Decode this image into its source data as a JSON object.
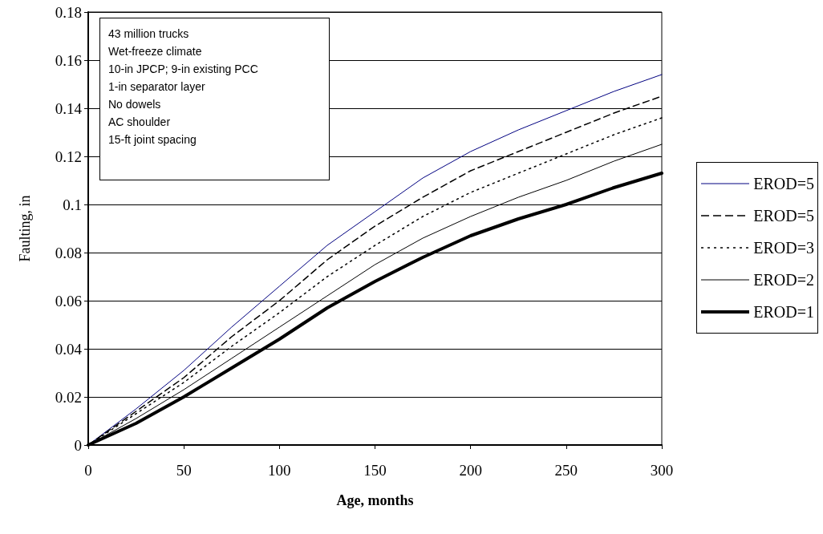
{
  "chart_data": {
    "type": "line",
    "xlabel": "Age, months",
    "ylabel": "Faulting, in",
    "x": [
      0,
      25,
      50,
      75,
      100,
      125,
      150,
      175,
      200,
      225,
      250,
      275,
      300
    ],
    "xlim": [
      0,
      300
    ],
    "xticks": [
      0,
      50,
      100,
      150,
      200,
      250,
      300
    ],
    "ylim": [
      0,
      0.18
    ],
    "yticks": [
      0,
      0.02,
      0.04,
      0.06,
      0.08,
      0.1,
      0.12,
      0.14,
      0.16,
      0.18
    ],
    "grid": "y",
    "legend": "right",
    "marker": "none",
    "series": [
      {
        "name": "EROD=5",
        "color": "#000080",
        "line_style": "solid",
        "values": [
          0,
          0.015,
          0.031,
          0.049,
          0.066,
          0.083,
          0.097,
          0.111,
          0.122,
          0.131,
          0.139,
          0.147,
          0.154
        ]
      },
      {
        "name": "EROD=5",
        "color": "#000000",
        "line_style": "dashed",
        "values": [
          0,
          0.014,
          0.028,
          0.045,
          0.06,
          0.077,
          0.091,
          0.103,
          0.114,
          0.122,
          0.13,
          0.138,
          0.145
        ]
      },
      {
        "name": "EROD=3",
        "color": "#000000",
        "line_style": "dotted",
        "values": [
          0,
          0.013,
          0.026,
          0.041,
          0.055,
          0.07,
          0.083,
          0.095,
          0.105,
          0.113,
          0.121,
          0.129,
          0.136
        ]
      },
      {
        "name": "EROD=2",
        "color": "#000000",
        "line_style": "solid",
        "values": [
          0,
          0.011,
          0.023,
          0.036,
          0.049,
          0.062,
          0.075,
          0.086,
          0.095,
          0.103,
          0.11,
          0.118,
          0.125
        ]
      },
      {
        "name": "EROD=1",
        "color": "#000000",
        "line_style": "solid",
        "values": [
          0,
          0.009,
          0.02,
          0.032,
          0.044,
          0.057,
          0.068,
          0.078,
          0.087,
          0.094,
          0.1,
          0.107,
          0.113
        ]
      }
    ],
    "annotations": [
      "43 million trucks",
      "Wet-freeze climate",
      "10-in JPCP; 9-in existing PCC",
      "1-in separator layer",
      "No dowels",
      "AC shoulder",
      "15-ft joint spacing"
    ]
  }
}
